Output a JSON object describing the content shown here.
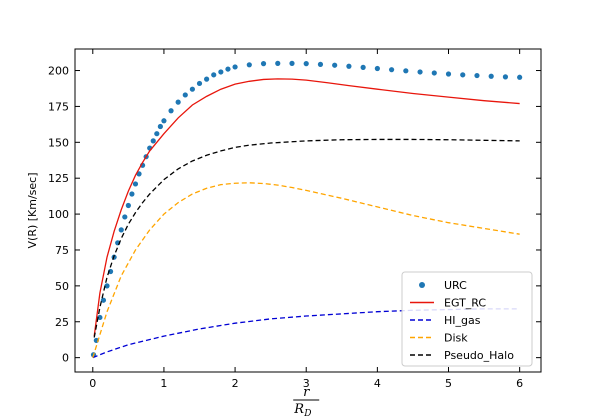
{
  "chart_data": {
    "type": "line",
    "title": "",
    "xlabel_num": "r",
    "xlabel_den": "R",
    "xlabel_den_sub": "D",
    "ylabel": "V(R) [Km/sec]",
    "xlim": [
      -0.25,
      6.3
    ],
    "ylim": [
      -10,
      215
    ],
    "xticks": [
      0,
      1,
      2,
      3,
      4,
      5,
      6
    ],
    "xtick_labels": [
      "0",
      "1",
      "2",
      "3",
      "4",
      "5",
      "6"
    ],
    "yticks": [
      0,
      25,
      50,
      75,
      100,
      125,
      150,
      175,
      200
    ],
    "ytick_labels": [
      "0",
      "25",
      "50",
      "75",
      "100",
      "125",
      "150",
      "175",
      "200"
    ],
    "grid": false,
    "legend_position": "lower-right",
    "series": [
      {
        "name": "URC",
        "style": "scatter",
        "color": "#1f77b4",
        "x": [
          0.01,
          0.05,
          0.1,
          0.15,
          0.2,
          0.25,
          0.3,
          0.35,
          0.4,
          0.45,
          0.5,
          0.55,
          0.6,
          0.65,
          0.7,
          0.75,
          0.8,
          0.85,
          0.9,
          0.95,
          1.0,
          1.1,
          1.2,
          1.3,
          1.4,
          1.5,
          1.6,
          1.7,
          1.8,
          1.9,
          2.0,
          2.2,
          2.4,
          2.6,
          2.8,
          3.0,
          3.2,
          3.4,
          3.6,
          3.8,
          4.0,
          4.2,
          4.4,
          4.6,
          4.8,
          5.0,
          5.2,
          5.4,
          5.6,
          5.8,
          6.0
        ],
        "y": [
          2,
          12,
          28,
          40,
          50,
          60,
          70,
          80,
          89,
          98,
          106,
          114,
          121,
          128,
          134,
          140,
          146,
          151,
          156,
          161,
          165,
          172,
          178,
          183,
          187,
          191,
          194,
          197,
          199,
          201,
          202.5,
          204,
          204.8,
          205,
          205,
          204.8,
          204.3,
          203.7,
          203,
          202.2,
          201.4,
          200.6,
          199.8,
          199,
          198.3,
          197.6,
          197,
          196.5,
          196,
          195.6,
          195.3
        ]
      },
      {
        "name": "EGT_RC",
        "style": "solid",
        "color": "#e8160c",
        "x": [
          0.02,
          0.1,
          0.2,
          0.3,
          0.4,
          0.5,
          0.6,
          0.7,
          0.8,
          0.9,
          1.0,
          1.2,
          1.4,
          1.6,
          1.8,
          2.0,
          2.2,
          2.4,
          2.6,
          2.8,
          3.0,
          3.3,
          3.6,
          4.0,
          4.5,
          5.0,
          5.5,
          6.0
        ],
        "y": [
          15,
          45,
          70,
          88,
          103,
          116,
          127,
          136,
          144,
          150,
          156,
          167,
          176,
          182,
          187,
          190.5,
          192.5,
          193.8,
          194.2,
          194,
          193.3,
          191.5,
          189.5,
          187,
          184,
          181.5,
          179,
          177
        ]
      },
      {
        "name": "HI_gas",
        "style": "dashed",
        "color": "#0000d4",
        "x": [
          0,
          0.2,
          0.5,
          1.0,
          1.5,
          2.0,
          2.5,
          3.0,
          3.5,
          4.0,
          4.5,
          5.0,
          5.5,
          6.0
        ],
        "y": [
          0,
          4,
          9,
          15,
          20,
          24,
          27,
          29,
          30.5,
          32,
          33,
          33.5,
          34,
          34
        ]
      },
      {
        "name": "Disk",
        "style": "dashed",
        "color": "#ffa500",
        "x": [
          0,
          0.2,
          0.4,
          0.6,
          0.8,
          1.0,
          1.2,
          1.4,
          1.6,
          1.8,
          2.0,
          2.2,
          2.4,
          2.6,
          2.8,
          3.0,
          3.5,
          4.0,
          4.5,
          5.0,
          5.5,
          6.0
        ],
        "y": [
          0,
          32,
          57,
          75,
          89,
          100,
          108,
          114,
          118,
          120.5,
          121.5,
          121.8,
          121.3,
          120.2,
          118.5,
          116.5,
          111,
          105,
          99,
          94,
          90,
          86
        ]
      },
      {
        "name": "Pseudo_Halo",
        "style": "dashed",
        "color": "#000000",
        "x": [
          0.02,
          0.1,
          0.2,
          0.3,
          0.4,
          0.5,
          0.6,
          0.7,
          0.8,
          0.9,
          1.0,
          1.2,
          1.4,
          1.6,
          1.8,
          2.0,
          2.2,
          2.5,
          3.0,
          3.5,
          4.0,
          4.5,
          5.0,
          5.5,
          6.0
        ],
        "y": [
          14,
          35,
          56,
          71,
          83,
          93,
          101,
          108,
          114,
          119,
          124,
          131.5,
          137,
          141,
          144,
          146.5,
          148,
          149.5,
          151,
          151.8,
          152,
          152,
          151.8,
          151.4,
          151
        ]
      }
    ]
  }
}
